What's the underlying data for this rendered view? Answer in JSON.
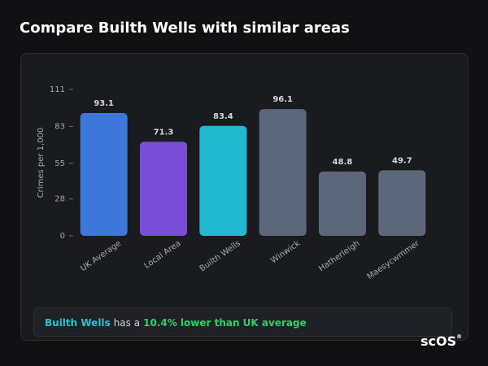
{
  "chart_data": {
    "type": "bar",
    "title": "Compare Builth Wells with similar areas",
    "y_label": "Crimes per 1,000",
    "categories": [
      "UK Average",
      "Local Area",
      "Builth Wells",
      "Winwick",
      "Hatherleigh",
      "Maesycwmmer"
    ],
    "values": [
      93.1,
      71.3,
      83.4,
      96.1,
      48.8,
      49.7
    ],
    "colors": [
      "#3b78d9",
      "#7a4fd8",
      "#22b8d0",
      "#5c6779",
      "#5c6779",
      "#5c6779"
    ],
    "ylim": [
      0,
      111
    ],
    "yticks": [
      0,
      28,
      55,
      83,
      111
    ],
    "grid": false
  },
  "summary": {
    "area": "Builth Wells",
    "text": "has a",
    "comparison": "10.4% lower than UK average"
  },
  "brand": {
    "name": "scOS",
    "mark": "®"
  }
}
